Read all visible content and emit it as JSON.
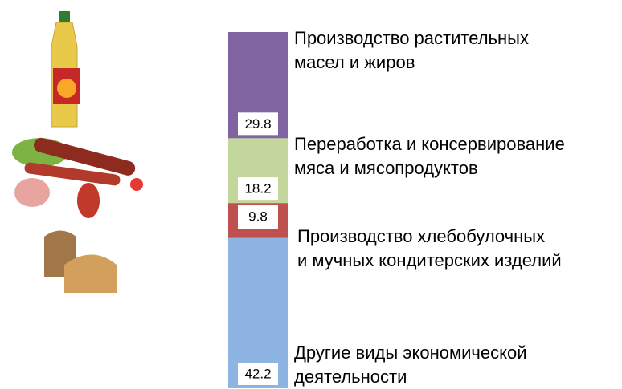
{
  "chart_data": {
    "type": "bar",
    "stacked": true,
    "categories": [
      null
    ],
    "ylim": [
      0,
      100
    ],
    "series": [
      {
        "name": "Другие виды экономической\nдеятельности",
        "color": "#8eb4e3",
        "values": [
          42.2
        ]
      },
      {
        "name": "Производство хлебобулочных\nи мучных кондитерских изделий",
        "color": "#c0504d",
        "values": [
          9.8
        ]
      },
      {
        "name": "Переработка и консервирование\nмяса и мясопродуктов",
        "color": "#c3d69b",
        "values": [
          18.2
        ]
      },
      {
        "name": "Производство растительных\nмасел и жиров",
        "color": "#8064a2",
        "values": [
          29.8
        ]
      }
    ]
  }
}
